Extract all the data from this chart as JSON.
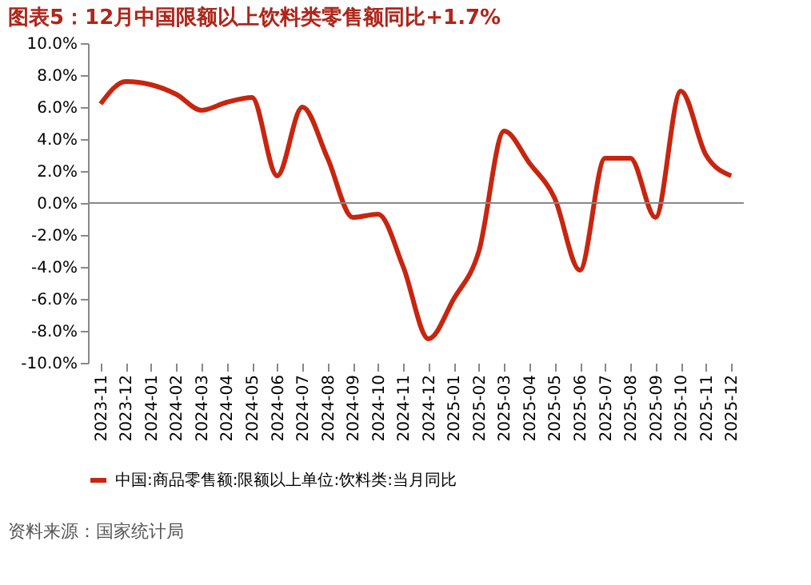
{
  "chart_data": {
    "type": "line",
    "title": "图表5：12月中国限额以上饮料类零售额同比+1.7%",
    "categories": [
      "2023-11",
      "2023-12",
      "2024-01",
      "2024-02",
      "2024-03",
      "2024-04",
      "2024-05",
      "2024-06",
      "2024-07",
      "2024-08",
      "2024-09",
      "2024-10",
      "2024-11",
      "2024-12",
      "2025-01",
      "2025-02",
      "2025-03",
      "2025-04",
      "2025-05",
      "2025-06",
      "2025-07",
      "2025-08",
      "2025-09",
      "2025-10",
      "2025-11",
      "2025-12"
    ],
    "series": [
      {
        "name": "中国:商品零售额:限额以上单位:饮料类:当月同比",
        "color": "#c8250f",
        "values": [
          6.2,
          7.6,
          7.4,
          6.8,
          5.8,
          6.3,
          6.6,
          1.7,
          6.0,
          2.8,
          -0.9,
          -0.7,
          -4.0,
          -8.5,
          -6.0,
          -3.0,
          4.5,
          2.5,
          0.3,
          -4.2,
          2.8,
          2.8,
          -0.9,
          7.0,
          3.0,
          1.7
        ]
      }
    ],
    "ylim": [
      -10,
      10
    ],
    "yticks": [
      {
        "value": -10,
        "label": "-10.0%"
      },
      {
        "value": -8,
        "label": "-8.0%"
      },
      {
        "value": -6,
        "label": "-6.0%"
      },
      {
        "value": -4,
        "label": "-4.0%"
      },
      {
        "value": -2,
        "label": "-2.0%"
      },
      {
        "value": 0,
        "label": "0.0%"
      },
      {
        "value": 2,
        "label": "2.0%"
      },
      {
        "value": 4,
        "label": "4.0%"
      },
      {
        "value": 6,
        "label": "6.0%"
      },
      {
        "value": 8,
        "label": "8.0%"
      },
      {
        "value": 10,
        "label": "10.0%"
      }
    ],
    "ref_lines": [
      {
        "axis": "y",
        "value": 0,
        "color": "#888888"
      }
    ],
    "grid": false,
    "legend": "bottom",
    "marker": "none",
    "line_style": "solid",
    "annotations": [
      "资料来源：国家统计局"
    ]
  }
}
